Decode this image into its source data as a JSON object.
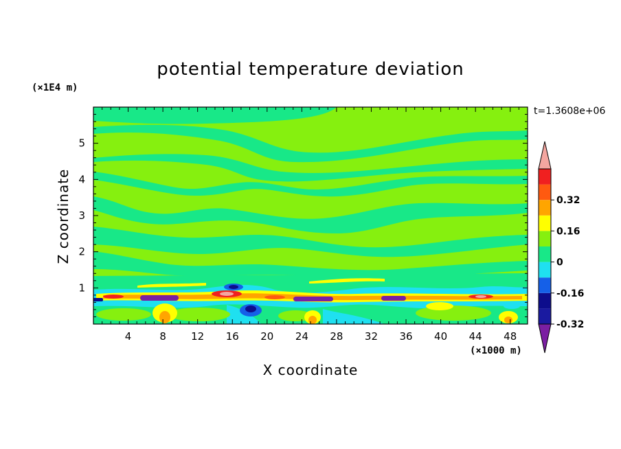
{
  "chart_data": {
    "type": "heatmap",
    "title": "potential temperature deviation",
    "xlabel": "X coordinate",
    "ylabel": "Z coordinate",
    "x_unit_label": "(×1000 m)",
    "y_unit_label": "(×1E4 m)",
    "time_label": "t=1.3608e+06",
    "xlim": [
      0,
      50
    ],
    "ylim": [
      0,
      6
    ],
    "x_ticks": [
      4,
      8,
      12,
      16,
      20,
      24,
      28,
      32,
      36,
      40,
      44,
      48
    ],
    "y_ticks": [
      1,
      2,
      3,
      4,
      5
    ],
    "colorbar": {
      "levels": [
        {
          "color": "#7B1FA2",
          "range": "< -0.40"
        },
        {
          "color": "#1A1AA0",
          "range": "-0.40 to -0.32"
        },
        {
          "color": "#0D0D8C",
          "range": "-0.32 to -0.24"
        },
        {
          "color": "#1560E8",
          "range": "-0.24 to -0.16"
        },
        {
          "color": "#1FE0F0",
          "range": "-0.16 to -0.08"
        },
        {
          "color": "#18E888",
          "range": "-0.08 to 0"
        },
        {
          "color": "#86F00F",
          "range": "0 to 0.08"
        },
        {
          "color": "#FFFF00",
          "range": "0.08 to 0.16"
        },
        {
          "color": "#FFA500",
          "range": "0.16 to 0.24"
        },
        {
          "color": "#FF5A10",
          "range": "0.24 to 0.32"
        },
        {
          "color": "#F02020",
          "range": "0.32 to 0.40"
        },
        {
          "color": "#F4A6A0",
          "range": "> 0.40"
        }
      ],
      "tick_labels": [
        "0.32",
        "0.16",
        "0",
        "-0.16",
        "-0.32"
      ]
    }
  }
}
